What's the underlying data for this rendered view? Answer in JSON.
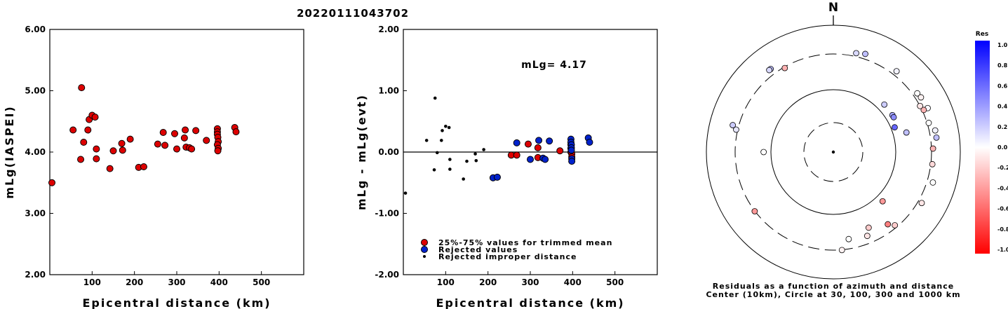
{
  "title": "20220111043702",
  "chart_data": [
    {
      "type": "scatter",
      "xlabel": "Epicentral distance (km)",
      "ylabel": "mLg(IASPEI)",
      "xlim": [
        0,
        600
      ],
      "ylim": [
        2.0,
        6.0
      ],
      "xticks": [
        "100",
        "200",
        "300",
        "400",
        "500"
      ],
      "yticks": [
        "2.00",
        "3.00",
        "4.00",
        "5.00",
        "6.00"
      ],
      "series": [
        {
          "color": "#dd0000",
          "points": [
            [
              5,
              3.5
            ],
            [
              55,
              4.36
            ],
            [
              75,
              5.05
            ],
            [
              73,
              3.88
            ],
            [
              80,
              4.16
            ],
            [
              90,
              4.36
            ],
            [
              93,
              4.53
            ],
            [
              100,
              4.6
            ],
            [
              107,
              4.57
            ],
            [
              110,
              4.05
            ],
            [
              110,
              3.89
            ],
            [
              142,
              3.73
            ],
            [
              150,
              4.02
            ],
            [
              170,
              4.14
            ],
            [
              172,
              4.03
            ],
            [
              190,
              4.21
            ],
            [
              210,
              3.75
            ],
            [
              222,
              3.76
            ],
            [
              255,
              4.13
            ],
            [
              268,
              4.32
            ],
            [
              272,
              4.11
            ],
            [
              295,
              4.3
            ],
            [
              300,
              4.05
            ],
            [
              318,
              4.23
            ],
            [
              320,
              4.36
            ],
            [
              322,
              4.08
            ],
            [
              330,
              4.07
            ],
            [
              335,
              4.05
            ],
            [
              345,
              4.35
            ],
            [
              370,
              4.19
            ],
            [
              396,
              4.38
            ],
            [
              396,
              4.33
            ],
            [
              396,
              4.29
            ],
            [
              397,
              4.24
            ],
            [
              398,
              4.17
            ],
            [
              396,
              4.12
            ],
            [
              398,
              4.06
            ],
            [
              397,
              4.02
            ],
            [
              437,
              4.4
            ],
            [
              440,
              4.33
            ]
          ]
        }
      ]
    },
    {
      "type": "scatter",
      "xlabel": "Epicentral distance (km)",
      "ylabel": "mLg - mLg(evt)",
      "xlim": [
        0,
        600
      ],
      "ylim": [
        -2.0,
        2.0
      ],
      "xticks": [
        "100",
        "200",
        "300",
        "400",
        "500"
      ],
      "yticks": [
        "-2.00",
        "-1.00",
        "0.00",
        "1.00",
        "2.00"
      ],
      "annotation": "mLg= 4.17",
      "legend": {
        "position": "bottom-left",
        "entries": [
          {
            "label": "25%-75% values for trimmed mean",
            "color": "#dd0000"
          },
          {
            "label": "Rejected values",
            "color": "#0022cc"
          },
          {
            "label": "Rejected improper distance",
            "color": "#000000"
          }
        ]
      },
      "series": [
        {
          "color": "#dd0000",
          "points": [
            [
              255,
              -0.05
            ],
            [
              268,
              -0.05
            ],
            [
              295,
              0.13
            ],
            [
              318,
              0.07
            ],
            [
              318,
              -0.09
            ],
            [
              370,
              0.02
            ],
            [
              396,
              0.12
            ],
            [
              396,
              0.06
            ],
            [
              396,
              0.0
            ],
            [
              398,
              -0.03
            ],
            [
              398,
              -0.08
            ]
          ]
        },
        {
          "color": "#0022cc",
          "points": [
            [
              212,
              -0.42
            ],
            [
              222,
              -0.41
            ],
            [
              268,
              0.15
            ],
            [
              300,
              -0.12
            ],
            [
              320,
              0.19
            ],
            [
              330,
              -0.1
            ],
            [
              335,
              -0.12
            ],
            [
              345,
              0.18
            ],
            [
              396,
              0.21
            ],
            [
              396,
              0.16
            ],
            [
              397,
              0.12
            ],
            [
              397,
              0.07
            ],
            [
              397,
              0.03
            ],
            [
              398,
              -0.11
            ],
            [
              398,
              -0.15
            ],
            [
              437,
              0.23
            ],
            [
              440,
              0.16
            ]
          ]
        },
        {
          "color": "#000000",
          "small": true,
          "points": [
            [
              5,
              -0.67
            ],
            [
              55,
              0.19
            ],
            [
              73,
              -0.29
            ],
            [
              75,
              0.88
            ],
            [
              80,
              -0.01
            ],
            [
              90,
              0.19
            ],
            [
              92,
              0.35
            ],
            [
              100,
              0.42
            ],
            [
              108,
              0.4
            ],
            [
              110,
              -0.12
            ],
            [
              110,
              -0.28
            ],
            [
              142,
              -0.44
            ],
            [
              150,
              -0.15
            ],
            [
              170,
              -0.03
            ],
            [
              172,
              -0.14
            ],
            [
              190,
              0.04
            ]
          ]
        }
      ]
    },
    {
      "type": "scatter",
      "subtype": "polar",
      "north_label": "N",
      "caption": [
        "Residuals as a function of azimuth and distance",
        "Center (10km), Circle at 30, 100, 300 and 1000 km"
      ],
      "rings_km": [
        30,
        100,
        300,
        1000
      ],
      "points": [
        {
          "az": 323,
          "dist": 1000,
          "res": 0.25
        },
        {
          "az": 322,
          "dist": 1000,
          "res": 0.15
        },
        {
          "az": 330,
          "dist": 700,
          "res": -0.3
        },
        {
          "az": 13,
          "dist": 880,
          "res": 0.15
        },
        {
          "az": 18,
          "dist": 960,
          "res": 0.25
        },
        {
          "az": 38,
          "dist": 930,
          "res": 0.05
        },
        {
          "az": 55,
          "dist": 920,
          "res": 0.0
        },
        {
          "az": 58,
          "dist": 960,
          "res": -0.05
        },
        {
          "az": 65,
          "dist": 1000,
          "res": 0.02
        },
        {
          "az": 65,
          "dist": 800,
          "res": -0.3
        },
        {
          "az": 62,
          "dist": 740,
          "res": -0.1
        },
        {
          "az": 47,
          "dist": 200,
          "res": 0.2
        },
        {
          "az": 58,
          "dist": 200,
          "res": 0.35
        },
        {
          "az": 60,
          "dist": 200,
          "res": 0.45
        },
        {
          "az": 68,
          "dist": 175,
          "res": 0.6
        },
        {
          "az": 75,
          "dist": 250,
          "res": 0.25
        },
        {
          "az": 73,
          "dist": 800,
          "res": 0.0
        },
        {
          "az": 78,
          "dist": 1000,
          "res": 0.05
        },
        {
          "az": 82,
          "dist": 1000,
          "res": 0.25
        },
        {
          "az": 88,
          "dist": 800,
          "res": -0.3
        },
        {
          "az": 97,
          "dist": 800,
          "res": -0.15
        },
        {
          "az": 107,
          "dist": 1000,
          "res": 0.0
        },
        {
          "az": 120,
          "dist": 900,
          "res": -0.1
        },
        {
          "az": 135,
          "dist": 200,
          "res": -0.4
        },
        {
          "az": 140,
          "dist": 650,
          "res": -0.2
        },
        {
          "az": 143,
          "dist": 500,
          "res": -0.5
        },
        {
          "az": 155,
          "dist": 350,
          "res": -0.2
        },
        {
          "az": 158,
          "dist": 500,
          "res": -0.1
        },
        {
          "az": 170,
          "dist": 450,
          "res": 0.0
        },
        {
          "az": 175,
          "dist": 750,
          "res": -0.05
        },
        {
          "az": 233,
          "dist": 750,
          "res": -0.4
        },
        {
          "az": 270,
          "dist": 200,
          "res": 0.0
        },
        {
          "az": 283,
          "dist": 800,
          "res": 0.1
        },
        {
          "az": 285,
          "dist": 1000,
          "res": 0.2
        }
      ],
      "colorbar": {
        "title": "Res",
        "ticks": [
          "1.0",
          "0.8",
          "0.6",
          "0.4",
          "0.2",
          "0.0",
          "-0.2",
          "-0.4",
          "-0.6",
          "-0.8",
          "-1.0"
        ],
        "colors": [
          "#0000ff",
          "#ff0000"
        ]
      }
    }
  ]
}
